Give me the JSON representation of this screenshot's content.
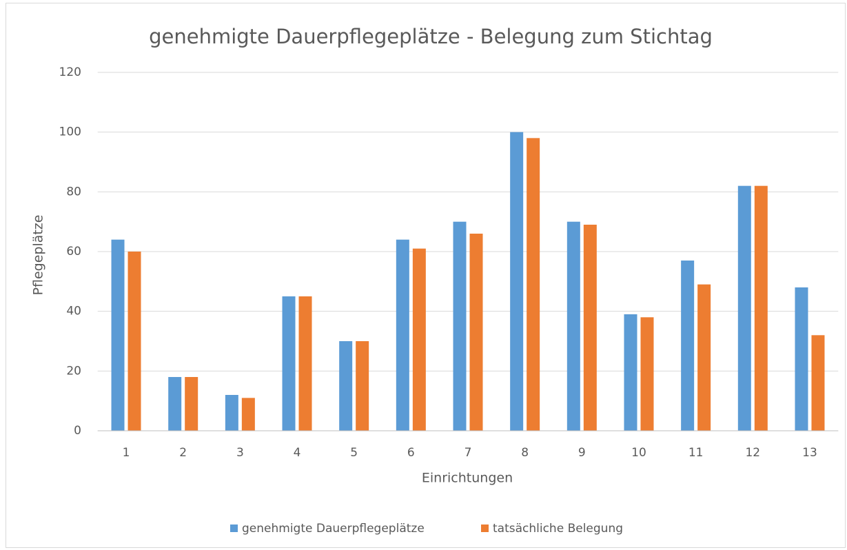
{
  "chart_data": {
    "type": "bar",
    "title": "genehmigte Dauerpflegeplätze - Belegung zum Stichtag",
    "x_label": "Einrichtungen",
    "y_label": "Pflegeplätze",
    "categories": [
      "1",
      "2",
      "3",
      "4",
      "5",
      "6",
      "7",
      "8",
      "9",
      "10",
      "11",
      "12",
      "13"
    ],
    "series": [
      {
        "name": "genehmigte Dauerpflegeplätze",
        "color": "#5b9bd5",
        "values": [
          64,
          18,
          12,
          45,
          30,
          64,
          70,
          100,
          70,
          39,
          57,
          82,
          48
        ]
      },
      {
        "name": "tatsächliche Belegung",
        "color": "#ed7d31",
        "values": [
          60,
          18,
          11,
          45,
          30,
          61,
          66,
          98,
          69,
          38,
          49,
          82,
          32
        ]
      }
    ],
    "ylim": [
      0,
      120
    ],
    "yticks": [
      0,
      20,
      40,
      60,
      80,
      100,
      120
    ],
    "grid": true,
    "legend": "bottom"
  }
}
